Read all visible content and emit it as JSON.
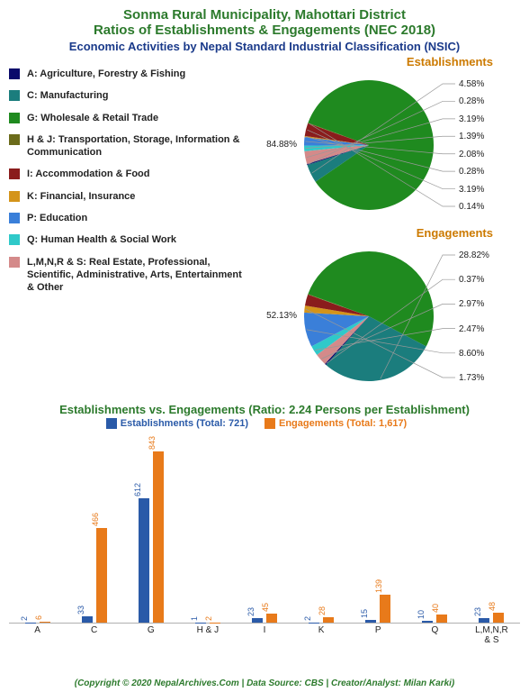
{
  "title_line1": "Sonma Rural Municipality, Mahottari District",
  "title_line2": "Ratios of Establishments & Engagements (NEC 2018)",
  "subtitle": "Economic Activities by Nepal Standard Industrial Classification (NSIC)",
  "title_color": "#2c7a2c",
  "subtitle_color": "#1a3a8a",
  "background_color": "#ffffff",
  "categories": [
    {
      "code": "A",
      "label": "A: Agriculture, Forestry & Fishing",
      "color": "#0a0a6b"
    },
    {
      "code": "C",
      "label": "C: Manufacturing",
      "color": "#1b7d7d"
    },
    {
      "code": "G",
      "label": "G: Wholesale & Retail Trade",
      "color": "#1f8a1f"
    },
    {
      "code": "H & J",
      "label": "H & J: Transportation, Storage, Information & Communication",
      "color": "#6b6b1a"
    },
    {
      "code": "I",
      "label": "I: Accommodation & Food",
      "color": "#8a1c1c"
    },
    {
      "code": "K",
      "label": "K: Financial, Insurance",
      "color": "#d4941a"
    },
    {
      "code": "P",
      "label": "P: Education",
      "color": "#3a7fd9"
    },
    {
      "code": "Q",
      "label": "Q: Human Health & Social Work",
      "color": "#2fc9c9"
    },
    {
      "code": "L,M,N,R & S",
      "label": "L,M,N,R & S: Real Estate, Professional, Scientific, Administrative, Arts, Entertainment & Other",
      "color": "#d48a8a"
    }
  ],
  "pie1": {
    "title": "Establishments",
    "title_color": "#cc7a00",
    "slices": [
      {
        "code": "G",
        "pct": 84.88,
        "color": "#1f8a1f",
        "label": "84.88%"
      },
      {
        "code": "C",
        "pct": 4.58,
        "color": "#1b7d7d",
        "label": "4.58%"
      },
      {
        "code": "A",
        "pct": 0.28,
        "color": "#0a0a6b",
        "label": "0.28%"
      },
      {
        "code": "L,M,N,R & S",
        "pct": 3.19,
        "color": "#d48a8a",
        "label": "3.19%"
      },
      {
        "code": "Q",
        "pct": 1.39,
        "color": "#2fc9c9",
        "label": "1.39%"
      },
      {
        "code": "P",
        "pct": 2.08,
        "color": "#3a7fd9",
        "label": "2.08%"
      },
      {
        "code": "K",
        "pct": 0.28,
        "color": "#d4941a",
        "label": "0.28%"
      },
      {
        "code": "I",
        "pct": 3.19,
        "color": "#8a1c1c",
        "label": "3.19%"
      },
      {
        "code": "H & J",
        "pct": 0.14,
        "color": "#6b6b1a",
        "label": "0.14%"
      }
    ]
  },
  "pie2": {
    "title": "Engagements",
    "title_color": "#cc7a00",
    "slices": [
      {
        "code": "G",
        "pct": 52.13,
        "color": "#1f8a1f",
        "label": "52.13%"
      },
      {
        "code": "C",
        "pct": 28.82,
        "color": "#1b7d7d",
        "label": "28.82%"
      },
      {
        "code": "A",
        "pct": 0.37,
        "color": "#0a0a6b",
        "label": "0.37%"
      },
      {
        "code": "L,M,N,R & S",
        "pct": 2.97,
        "color": "#d48a8a",
        "label": "2.97%"
      },
      {
        "code": "Q",
        "pct": 2.47,
        "color": "#2fc9c9",
        "label": "2.47%"
      },
      {
        "code": "P",
        "pct": 8.6,
        "color": "#3a7fd9",
        "label": "8.60%"
      },
      {
        "code": "K",
        "pct": 1.73,
        "color": "#d4941a",
        "label": "1.73%"
      },
      {
        "code": "I",
        "pct": 2.78,
        "color": "#8a1c1c",
        "label": ""
      },
      {
        "code": "H & J",
        "pct": 0.12,
        "color": "#6b6b1a",
        "label": ""
      }
    ]
  },
  "bar_chart": {
    "title": "Establishments vs. Engagements (Ratio: 2.24 Persons per Establishment)",
    "title_color": "#2c7a2c",
    "series": [
      {
        "name": "Establishments",
        "total": 721,
        "label": "Establishments (Total: 721)",
        "color": "#2a5aa8"
      },
      {
        "name": "Engagements",
        "total": 1617,
        "label": "Engagements (Total: 1,617)",
        "color": "#e87a1a"
      }
    ],
    "ymax": 843,
    "data": [
      {
        "code": "A",
        "est": 2,
        "eng": 6
      },
      {
        "code": "C",
        "est": 33,
        "eng": 466
      },
      {
        "code": "G",
        "est": 612,
        "eng": 843
      },
      {
        "code": "H & J",
        "est": 1,
        "eng": 2
      },
      {
        "code": "I",
        "est": 23,
        "eng": 45
      },
      {
        "code": "K",
        "est": 2,
        "eng": 28
      },
      {
        "code": "P",
        "est": 15,
        "eng": 139
      },
      {
        "code": "Q",
        "est": 10,
        "eng": 40
      },
      {
        "code": "L,M,N,R & S",
        "est": 23,
        "eng": 48
      }
    ]
  },
  "footer": "(Copyright © 2020 NepalArchives.Com | Data Source: CBS | Creator/Analyst: Milan Karki)"
}
